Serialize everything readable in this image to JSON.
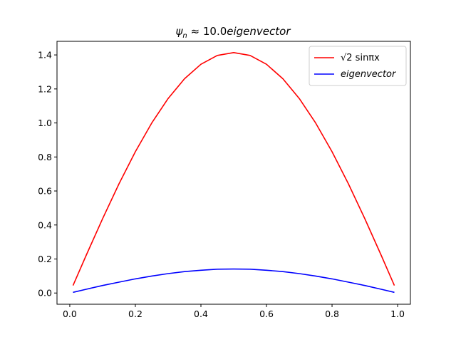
{
  "chart_data": {
    "type": "line",
    "title": "ψn ≈ 10.0eigenvector",
    "title_parts": {
      "psi": "ψ",
      "sub": "n",
      "rest": " ≈ 10.0",
      "italic": "eigenvector"
    },
    "xlabel": "",
    "ylabel": "",
    "xlim": [
      -0.039,
      1.039
    ],
    "ylim": [
      -0.066,
      1.48
    ],
    "x_ticks": [
      0.0,
      0.2,
      0.4,
      0.6,
      0.8,
      1.0
    ],
    "x_tick_labels": [
      "0.0",
      "0.2",
      "0.4",
      "0.6",
      "0.8",
      "1.0"
    ],
    "y_ticks": [
      0.0,
      0.2,
      0.4,
      0.6,
      0.8,
      1.0,
      1.2,
      1.4
    ],
    "y_tick_labels": [
      "0.0",
      "0.2",
      "0.4",
      "0.6",
      "0.8",
      "1.0",
      "1.2",
      "1.4"
    ],
    "grid": false,
    "legend_position": "top-right",
    "series": [
      {
        "name": "√2 sinπx",
        "color": "#ff0000",
        "x": [
          0.01,
          0.05,
          0.1,
          0.15,
          0.2,
          0.25,
          0.3,
          0.35,
          0.4,
          0.45,
          0.5,
          0.55,
          0.6,
          0.65,
          0.7,
          0.75,
          0.8,
          0.85,
          0.9,
          0.95,
          0.99
        ],
        "y": [
          0.044,
          0.221,
          0.437,
          0.642,
          0.831,
          1.0,
          1.144,
          1.26,
          1.345,
          1.397,
          1.414,
          1.397,
          1.345,
          1.26,
          1.144,
          1.0,
          0.831,
          0.642,
          0.437,
          0.221,
          0.044
        ]
      },
      {
        "name": "eigenvector",
        "color": "#0000ff",
        "x": [
          0.01,
          0.05,
          0.1,
          0.15,
          0.2,
          0.25,
          0.3,
          0.35,
          0.4,
          0.45,
          0.5,
          0.55,
          0.6,
          0.65,
          0.7,
          0.75,
          0.8,
          0.85,
          0.9,
          0.95,
          0.99
        ],
        "y": [
          0.004,
          0.022,
          0.044,
          0.064,
          0.083,
          0.1,
          0.114,
          0.126,
          0.134,
          0.14,
          0.141,
          0.14,
          0.134,
          0.126,
          0.114,
          0.1,
          0.083,
          0.064,
          0.044,
          0.022,
          0.004
        ]
      }
    ]
  }
}
